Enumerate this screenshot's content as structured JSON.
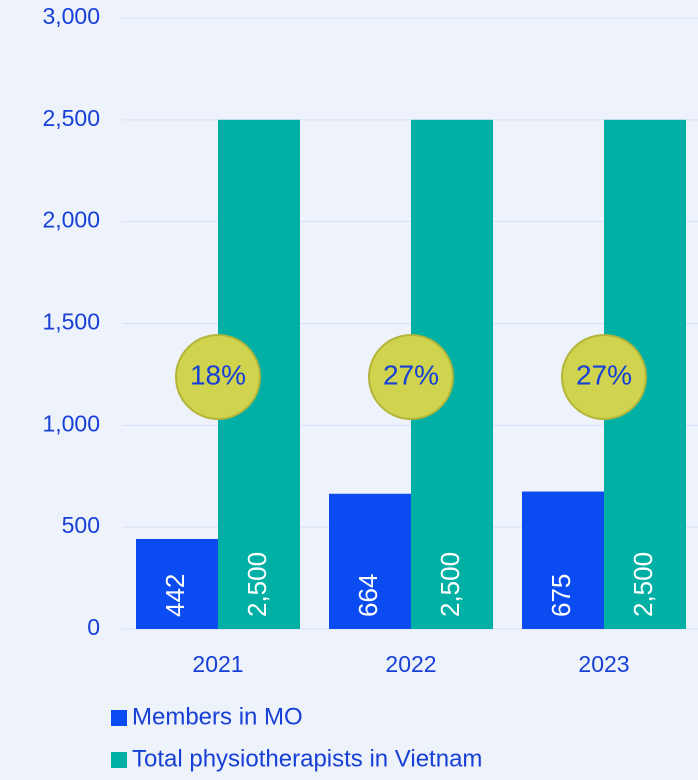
{
  "chart_data": {
    "type": "bar",
    "categories": [
      "2021",
      "2022",
      "2023"
    ],
    "series": [
      {
        "name": "Members in MO",
        "color": "#0a4cf2",
        "values": [
          442,
          664,
          675
        ],
        "value_labels": [
          "442",
          "664",
          "675"
        ]
      },
      {
        "name": "Total physiotherapists in Vietnam",
        "color": "#00b0a4",
        "values": [
          2500,
          2500,
          2500
        ],
        "value_labels": [
          "2,500",
          "2,500",
          "2,500"
        ]
      }
    ],
    "annotations": [
      "18%",
      "27%",
      "27%"
    ],
    "ylim": [
      0,
      3000
    ],
    "yticks": [
      0,
      500,
      {
        "value": 1000,
        "label": "1,000"
      },
      {
        "value": 1500,
        "label": "1,500"
      },
      {
        "value": 2000,
        "label": "2,000"
      },
      {
        "value": 2500,
        "label": "2,500"
      },
      {
        "value": 3000,
        "label": "3,000"
      }
    ],
    "grid": true,
    "legend": "bottom"
  }
}
